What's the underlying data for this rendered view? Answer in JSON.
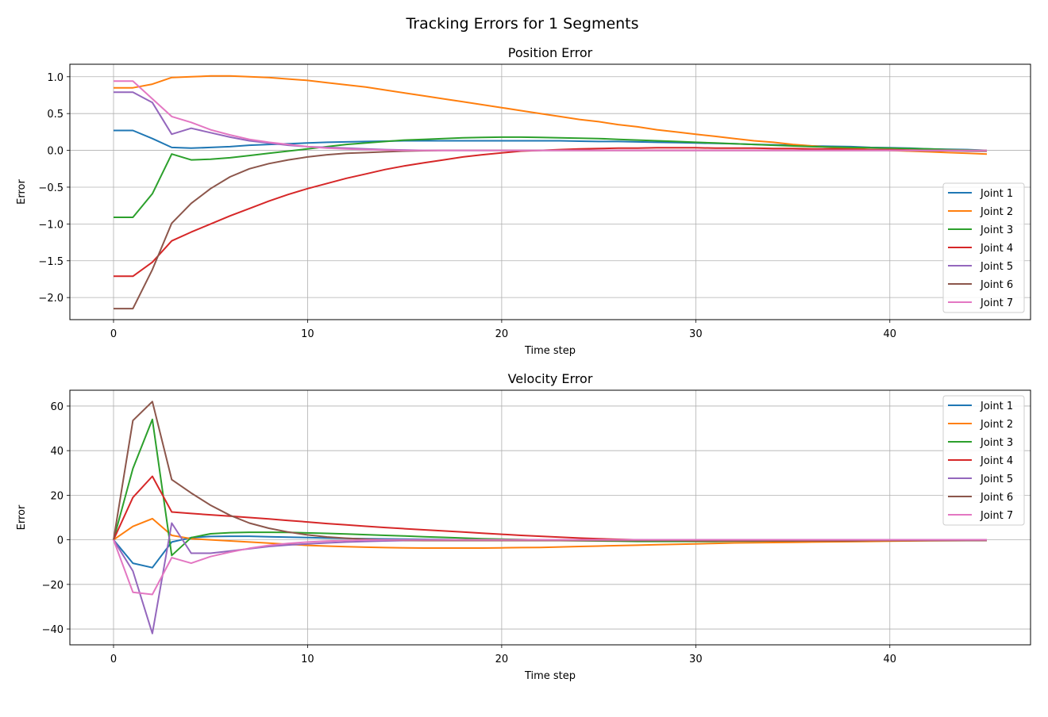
{
  "suptitle": "Tracking Errors for 1 Segments",
  "chart_data": [
    {
      "type": "line",
      "title": "Position Error",
      "xlabel": "Time step",
      "ylabel": "Error",
      "xlim": [
        -2.25,
        47.25
      ],
      "ylim": [
        -2.3,
        1.17
      ],
      "xticks": [
        0,
        10,
        20,
        30,
        40
      ],
      "yticks": [
        -2.0,
        -1.5,
        -1.0,
        -0.5,
        0.0,
        0.5,
        1.0
      ],
      "ytick_labels": [
        "−2.0",
        "−1.5",
        "−1.0",
        "−0.5",
        "0.0",
        "0.5",
        "1.0"
      ],
      "grid": true,
      "legend": "lower-right",
      "series": [
        {
          "name": "Joint 1",
          "color": "#1f77b4",
          "values": [
            0.27,
            0.27,
            0.16,
            0.04,
            0.03,
            0.04,
            0.05,
            0.07,
            0.08,
            0.09,
            0.1,
            0.11,
            0.115,
            0.12,
            0.125,
            0.13,
            0.13,
            0.13,
            0.13,
            0.13,
            0.13,
            0.13,
            0.13,
            0.13,
            0.125,
            0.12,
            0.12,
            0.115,
            0.11,
            0.105,
            0.1,
            0.095,
            0.09,
            0.08,
            0.075,
            0.07,
            0.06,
            0.055,
            0.05,
            0.04,
            0.035,
            0.03,
            0.02,
            0.015,
            0.01,
            0.0
          ]
        },
        {
          "name": "Joint 2",
          "color": "#ff7f0e",
          "values": [
            0.85,
            0.85,
            0.9,
            0.99,
            1.0,
            1.01,
            1.01,
            1.0,
            0.99,
            0.97,
            0.95,
            0.92,
            0.89,
            0.86,
            0.82,
            0.78,
            0.74,
            0.7,
            0.66,
            0.62,
            0.58,
            0.54,
            0.5,
            0.46,
            0.42,
            0.39,
            0.35,
            0.32,
            0.28,
            0.25,
            0.22,
            0.19,
            0.16,
            0.13,
            0.11,
            0.08,
            0.06,
            0.04,
            0.03,
            0.01,
            0.0,
            -0.01,
            -0.02,
            -0.03,
            -0.04,
            -0.05
          ]
        },
        {
          "name": "Joint 3",
          "color": "#2ca02c",
          "values": [
            -0.91,
            -0.91,
            -0.59,
            -0.05,
            -0.13,
            -0.12,
            -0.1,
            -0.07,
            -0.04,
            -0.01,
            0.02,
            0.05,
            0.08,
            0.1,
            0.12,
            0.14,
            0.15,
            0.16,
            0.17,
            0.175,
            0.18,
            0.18,
            0.175,
            0.17,
            0.165,
            0.16,
            0.15,
            0.14,
            0.13,
            0.12,
            0.11,
            0.1,
            0.09,
            0.08,
            0.07,
            0.06,
            0.05,
            0.045,
            0.04,
            0.035,
            0.03,
            0.025,
            0.02,
            0.01,
            0.005,
            0.0
          ]
        },
        {
          "name": "Joint 4",
          "color": "#d62728",
          "values": [
            -1.71,
            -1.71,
            -1.52,
            -1.23,
            -1.11,
            -1.0,
            -0.89,
            -0.79,
            -0.69,
            -0.6,
            -0.52,
            -0.45,
            -0.38,
            -0.32,
            -0.26,
            -0.21,
            -0.17,
            -0.13,
            -0.09,
            -0.06,
            -0.035,
            -0.01,
            0.0,
            0.01,
            0.02,
            0.025,
            0.03,
            0.03,
            0.035,
            0.035,
            0.035,
            0.03,
            0.03,
            0.03,
            0.025,
            0.025,
            0.02,
            0.02,
            0.015,
            0.01,
            0.01,
            0.005,
            0.0,
            0.0,
            -0.005,
            -0.01
          ]
        },
        {
          "name": "Joint 5",
          "color": "#9467bd",
          "values": [
            0.79,
            0.79,
            0.65,
            0.22,
            0.3,
            0.24,
            0.18,
            0.13,
            0.1,
            0.07,
            0.05,
            0.04,
            0.03,
            0.02,
            0.01,
            0.005,
            0,
            0,
            0,
            0,
            0,
            0,
            0,
            0,
            0,
            0,
            0,
            0,
            0,
            0,
            0,
            0,
            0,
            0,
            0,
            0,
            0,
            0,
            0,
            0,
            0,
            0,
            -0.005,
            -0.005,
            -0.01,
            -0.01
          ]
        },
        {
          "name": "Joint 6",
          "color": "#8c564b",
          "values": [
            -2.15,
            -2.15,
            -1.62,
            -0.99,
            -0.72,
            -0.52,
            -0.36,
            -0.25,
            -0.18,
            -0.13,
            -0.09,
            -0.06,
            -0.04,
            -0.03,
            -0.02,
            -0.01,
            -0.005,
            0,
            0,
            0,
            0,
            0,
            0,
            0,
            0,
            0,
            0,
            0,
            0,
            0,
            0,
            0,
            0,
            0,
            0,
            0,
            0,
            0,
            0,
            0,
            0,
            0,
            0,
            0,
            -0.005,
            -0.01
          ]
        },
        {
          "name": "Joint 7",
          "color": "#e377c2",
          "values": [
            0.94,
            0.94,
            0.7,
            0.46,
            0.38,
            0.28,
            0.21,
            0.15,
            0.11,
            0.08,
            0.05,
            0.03,
            0.02,
            0.01,
            0.005,
            0,
            0,
            0,
            0,
            0,
            0,
            0,
            0,
            0,
            0,
            0,
            0,
            0,
            0,
            0,
            0,
            0,
            0,
            0,
            0,
            0,
            0,
            0,
            0,
            0,
            0,
            0,
            0,
            0,
            0,
            0
          ]
        }
      ]
    },
    {
      "type": "line",
      "title": "Velocity Error",
      "xlabel": "Time step",
      "ylabel": "Error",
      "xlim": [
        -2.25,
        47.25
      ],
      "ylim": [
        -47.1,
        67.1
      ],
      "xticks": [
        0,
        10,
        20,
        30,
        40
      ],
      "yticks": [
        -40,
        -20,
        0,
        20,
        40,
        60
      ],
      "ytick_labels": [
        "−40",
        "−20",
        "0",
        "20",
        "40",
        "60"
      ],
      "grid": true,
      "legend": "upper-right",
      "series": [
        {
          "name": "Joint 1",
          "color": "#1f77b4",
          "values": [
            0,
            -10.5,
            -12.5,
            -1,
            1,
            1.5,
            1.6,
            1.6,
            1.4,
            1.2,
            1.0,
            0.8,
            0.6,
            0.5,
            0.4,
            0.3,
            0.2,
            0.1,
            0,
            0,
            -0.1,
            -0.1,
            -0.2,
            -0.2,
            -0.2,
            -0.2,
            -0.2,
            -0.2,
            -0.2,
            -0.2,
            -0.2,
            -0.2,
            -0.2,
            -0.2,
            -0.2,
            -0.2,
            -0.2,
            -0.2,
            -0.2,
            -0.2,
            -0.2,
            -0.2,
            -0.2,
            -0.2,
            -0.2,
            -0.2
          ]
        },
        {
          "name": "Joint 2",
          "color": "#ff7f0e",
          "values": [
            0,
            6,
            9.5,
            2,
            0.5,
            0,
            -0.5,
            -1,
            -1.5,
            -2,
            -2.5,
            -2.8,
            -3.1,
            -3.3,
            -3.5,
            -3.6,
            -3.7,
            -3.7,
            -3.7,
            -3.7,
            -3.6,
            -3.5,
            -3.4,
            -3.2,
            -3.0,
            -2.8,
            -2.6,
            -2.4,
            -2.2,
            -2.0,
            -1.8,
            -1.6,
            -1.4,
            -1.3,
            -1.2,
            -1.1,
            -1.0,
            -0.9,
            -0.8,
            -0.7,
            -0.6,
            -0.5,
            -0.4,
            -0.35,
            -0.3,
            -0.3
          ]
        },
        {
          "name": "Joint 3",
          "color": "#2ca02c",
          "values": [
            0,
            32,
            54,
            -7,
            1,
            2.7,
            3.2,
            3.4,
            3.4,
            3.3,
            3.1,
            2.9,
            2.6,
            2.3,
            2.0,
            1.7,
            1.4,
            1.1,
            0.8,
            0.5,
            0.3,
            0.1,
            -0.1,
            -0.3,
            -0.4,
            -0.5,
            -0.6,
            -0.7,
            -0.7,
            -0.7,
            -0.7,
            -0.7,
            -0.6,
            -0.6,
            -0.5,
            -0.5,
            -0.4,
            -0.4,
            -0.4,
            -0.3,
            -0.3,
            -0.3,
            -0.2,
            -0.2,
            -0.2,
            -0.2
          ]
        },
        {
          "name": "Joint 4",
          "color": "#d62728",
          "values": [
            0,
            19,
            28.5,
            12.5,
            11.8,
            11.2,
            10.6,
            10,
            9.4,
            8.7,
            8,
            7.3,
            6.7,
            6.1,
            5.5,
            5,
            4.5,
            4,
            3.5,
            3,
            2.5,
            2,
            1.6,
            1.2,
            0.8,
            0.5,
            0.2,
            0,
            -0.2,
            -0.3,
            -0.4,
            -0.4,
            -0.4,
            -0.4,
            -0.4,
            -0.4,
            -0.4,
            -0.4,
            -0.4,
            -0.3,
            -0.3,
            -0.3,
            -0.3,
            -0.3,
            -0.3,
            -0.3
          ]
        },
        {
          "name": "Joint 5",
          "color": "#9467bd",
          "values": [
            0,
            -14,
            -42,
            7.5,
            -6,
            -6,
            -5,
            -4,
            -3,
            -2.3,
            -1.8,
            -1.4,
            -1,
            -0.7,
            -0.5,
            -0.3,
            -0.2,
            -0.1,
            0,
            0,
            0,
            0,
            0,
            0,
            0,
            0,
            0,
            0,
            0,
            0,
            0,
            0,
            0,
            0,
            0,
            0,
            0,
            0,
            0,
            0,
            0,
            0,
            0,
            0,
            0,
            0
          ]
        },
        {
          "name": "Joint 6",
          "color": "#8c564b",
          "values": [
            0,
            53.5,
            62,
            27,
            21,
            15.5,
            11,
            7.5,
            5.2,
            3.5,
            2.2,
            1.3,
            0.7,
            0.3,
            0,
            -0.2,
            -0.3,
            -0.3,
            -0.3,
            -0.3,
            -0.3,
            -0.3,
            -0.3,
            -0.3,
            -0.3,
            -0.3,
            -0.3,
            -0.3,
            -0.3,
            -0.3,
            -0.3,
            -0.3,
            -0.3,
            -0.3,
            -0.3,
            -0.3,
            -0.3,
            -0.3,
            -0.3,
            -0.3,
            -0.3,
            -0.3,
            -0.3,
            -0.3,
            -0.3,
            -0.3
          ]
        },
        {
          "name": "Joint 7",
          "color": "#e377c2",
          "values": [
            0,
            -23.5,
            -24.5,
            -8,
            -10.5,
            -7.5,
            -5.5,
            -3.8,
            -2.5,
            -1.6,
            -1,
            -0.6,
            -0.3,
            -0.1,
            0,
            0,
            0,
            0,
            0,
            0,
            0,
            0,
            0,
            0,
            0,
            0,
            0,
            0,
            0,
            0,
            0,
            0,
            0,
            0,
            0,
            0,
            0,
            0,
            0,
            0,
            0,
            0,
            0,
            0,
            0,
            0
          ]
        }
      ]
    }
  ]
}
